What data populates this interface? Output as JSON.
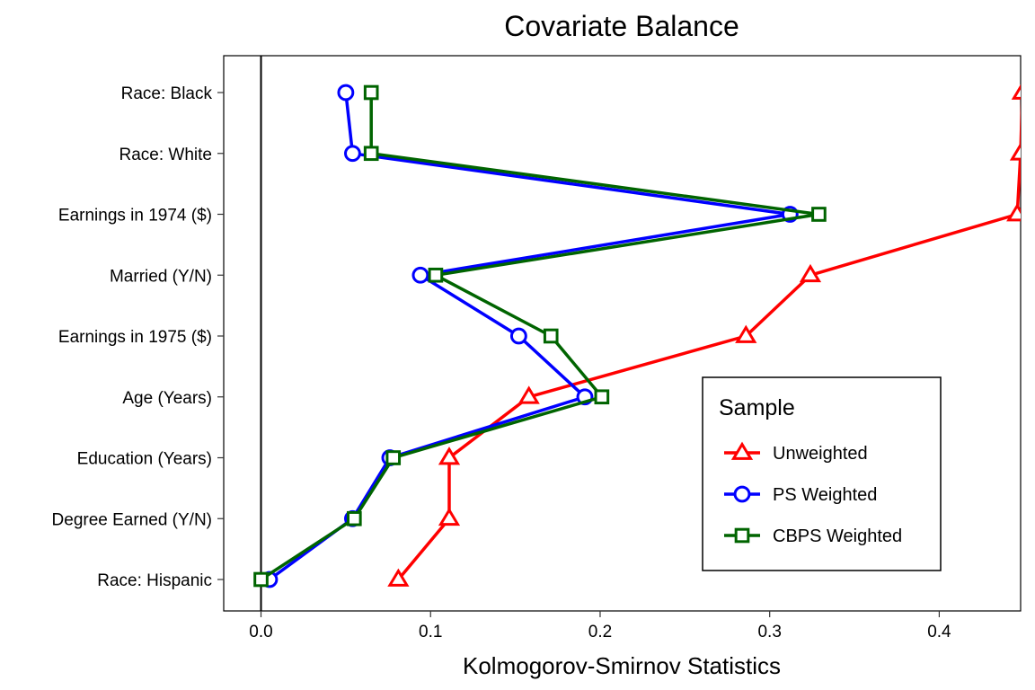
{
  "chart_data": {
    "type": "line",
    "title": "Covariate Balance",
    "xlabel": "Kolmogorov-Smirnov Statistics",
    "ylabel": "",
    "xlim": [
      -0.022,
      0.448
    ],
    "xticks": [
      0.0,
      0.1,
      0.2,
      0.3,
      0.4
    ],
    "xtick_labels": [
      "0.0",
      "0.1",
      "0.2",
      "0.3",
      "0.4"
    ],
    "categories": [
      "Race: Black",
      "Race: White",
      "Earnings in 1974 ($)",
      "Married (Y/N)",
      "Earnings in 1975 ($)",
      "Age (Years)",
      "Education (Years)",
      "Degree Earned (Y/N)",
      "Race: Hispanic"
    ],
    "reference_line_x": 0,
    "grid": false,
    "legend": {
      "title": "Sample",
      "placement": "bottom-right"
    },
    "series": [
      {
        "name": "Unweighted",
        "color": "#ff0000",
        "marker": "triangle",
        "values": [
          0.449,
          0.448,
          0.446,
          0.324,
          0.286,
          0.158,
          0.111,
          0.111,
          0.081
        ]
      },
      {
        "name": "PS Weighted",
        "color": "#0000ff",
        "marker": "circle",
        "values": [
          0.05,
          0.054,
          0.312,
          0.094,
          0.152,
          0.191,
          0.076,
          0.054,
          0.005
        ]
      },
      {
        "name": "CBPS Weighted",
        "color": "#006400",
        "marker": "square",
        "values": [
          0.065,
          0.065,
          0.329,
          0.103,
          0.171,
          0.201,
          0.078,
          0.055,
          0.0
        ]
      }
    ]
  }
}
